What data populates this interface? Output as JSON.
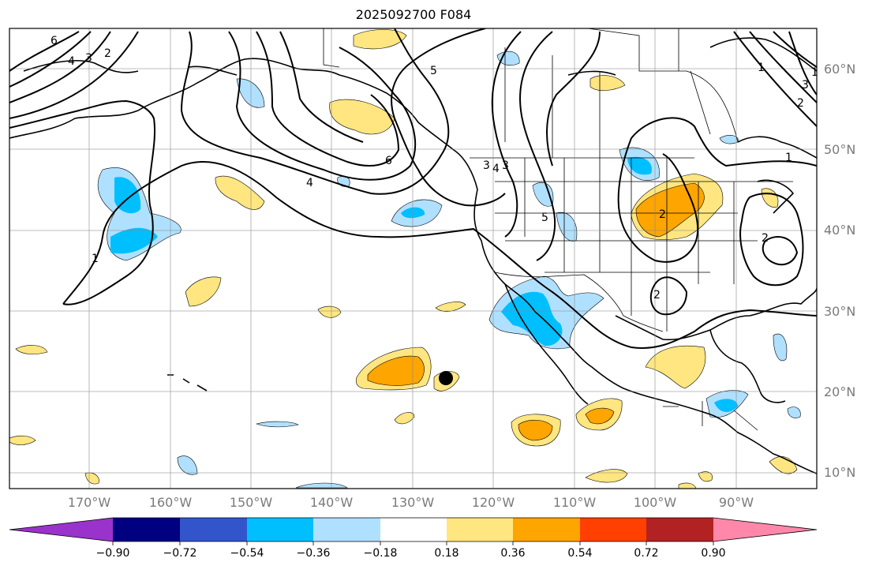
{
  "title": "2025092700 F084",
  "map": {
    "lat_labels": [
      "60°N",
      "50°N",
      "40°N",
      "30°N",
      "20°N",
      "10°N"
    ],
    "lon_labels": [
      "170°W",
      "160°W",
      "150°W",
      "140°W",
      "130°W",
      "120°W",
      "110°W",
      "100°W",
      "90°W"
    ],
    "contour_labels": [
      "6",
      "4",
      "3",
      "2",
      "5",
      "1",
      "6",
      "4",
      "3",
      "5",
      "3",
      "4",
      "2",
      "1",
      "2",
      "2",
      "1",
      "2",
      "1",
      "3"
    ],
    "marker": "storm-position-marker"
  },
  "colorbar": {
    "ticks": [
      "−0.90",
      "−0.72",
      "−0.54",
      "−0.36",
      "−0.18",
      "0.18",
      "0.36",
      "0.54",
      "0.72",
      "0.90"
    ],
    "colors": [
      "#9933cc",
      "#000080",
      "#3355cc",
      "#00bfff",
      "#b0e0ff",
      "#ffffff",
      "#ffe680",
      "#ffa500",
      "#ff4000",
      "#b22222",
      "#ff88aa"
    ]
  }
}
